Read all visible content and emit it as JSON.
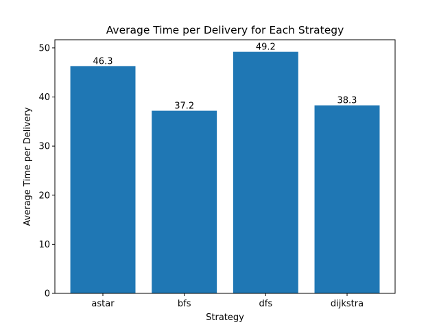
{
  "chart_data": {
    "type": "bar",
    "title": "Average Time per Delivery for Each Strategy",
    "xlabel": "Strategy",
    "ylabel": "Average Time per Delivery",
    "categories": [
      "astar",
      "bfs",
      "dfs",
      "dijkstra"
    ],
    "values": [
      46.3,
      37.2,
      49.2,
      38.3
    ],
    "data_labels": [
      "46.3",
      "37.2",
      "49.2",
      "38.3"
    ],
    "ylim": [
      0,
      51.66
    ],
    "yticks": [
      0,
      10,
      20,
      30,
      40,
      50
    ],
    "bar_color": "#1f77b4",
    "grid": false,
    "legend": "none"
  }
}
